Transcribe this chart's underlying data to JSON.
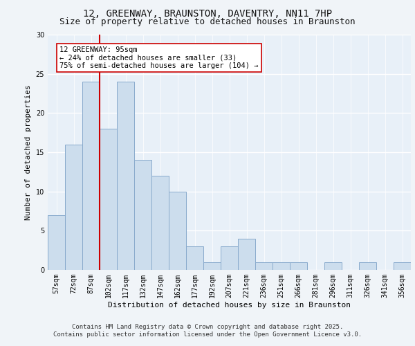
{
  "title_line1": "12, GREENWAY, BRAUNSTON, DAVENTRY, NN11 7HP",
  "title_line2": "Size of property relative to detached houses in Braunston",
  "xlabel": "Distribution of detached houses by size in Braunston",
  "ylabel": "Number of detached properties",
  "categories": [
    "57sqm",
    "72sqm",
    "87sqm",
    "102sqm",
    "117sqm",
    "132sqm",
    "147sqm",
    "162sqm",
    "177sqm",
    "192sqm",
    "207sqm",
    "221sqm",
    "236sqm",
    "251sqm",
    "266sqm",
    "281sqm",
    "296sqm",
    "311sqm",
    "326sqm",
    "341sqm",
    "356sqm"
  ],
  "values": [
    7,
    16,
    24,
    18,
    24,
    14,
    12,
    10,
    3,
    1,
    3,
    4,
    1,
    1,
    1,
    0,
    1,
    0,
    1,
    0,
    1
  ],
  "bar_color": "#ccdded",
  "bar_edge_color": "#88aacc",
  "vline_x": 2.5,
  "vline_color": "#cc0000",
  "annotation_text": "12 GREENWAY: 95sqm\n← 24% of detached houses are smaller (33)\n75% of semi-detached houses are larger (104) →",
  "annotation_box_color": "white",
  "annotation_box_edge": "#cc0000",
  "ylim": [
    0,
    30
  ],
  "yticks": [
    0,
    5,
    10,
    15,
    20,
    25,
    30
  ],
  "footer_line1": "Contains HM Land Registry data © Crown copyright and database right 2025.",
  "footer_line2": "Contains public sector information licensed under the Open Government Licence v3.0.",
  "background_color": "#e8f0f8",
  "fig_background": "#f0f4f8",
  "grid_color": "#ffffff",
  "title_fontsize": 10,
  "subtitle_fontsize": 9,
  "axis_label_fontsize": 8,
  "tick_fontsize": 7,
  "annotation_fontsize": 7.5,
  "footer_fontsize": 6.5
}
